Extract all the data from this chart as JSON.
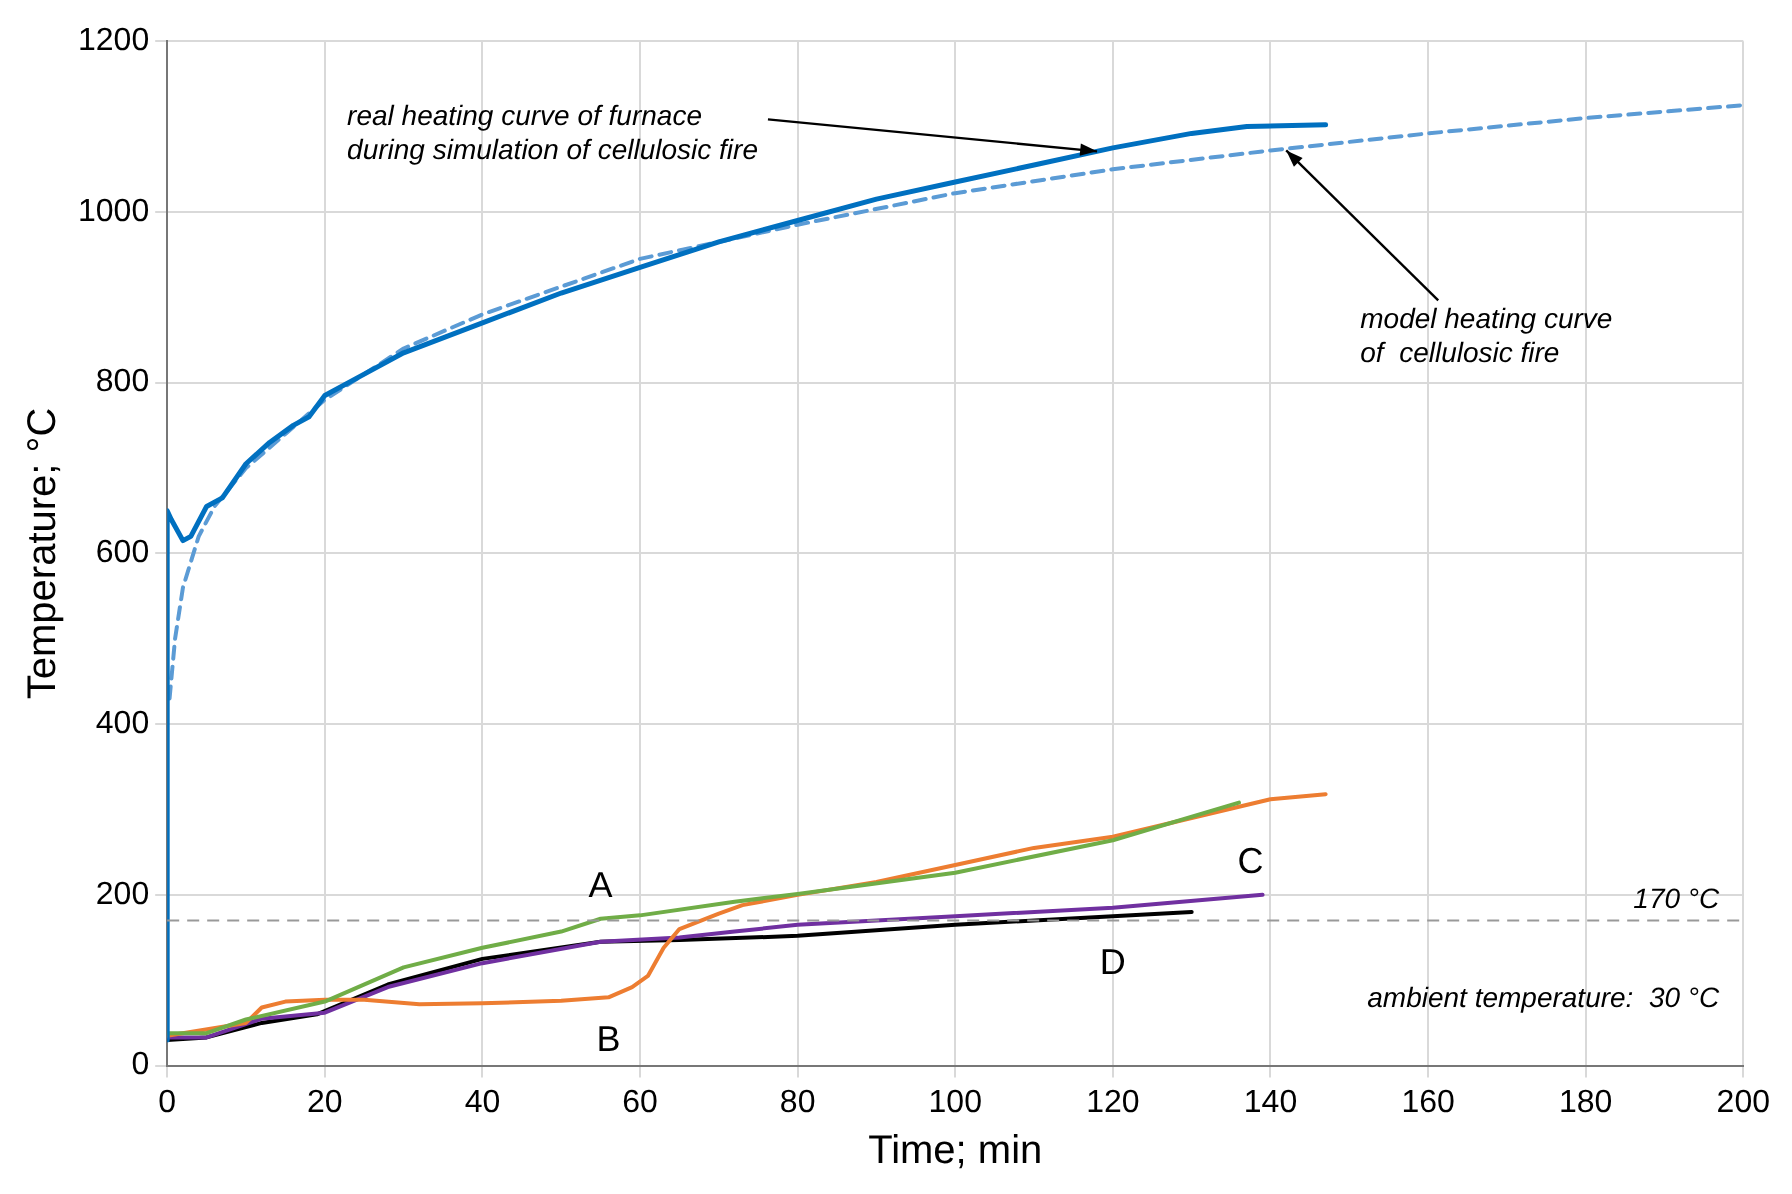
{
  "chart_data": {
    "type": "line",
    "xlabel": "Time; min",
    "ylabel": "Temperature; °C",
    "xlim": [
      0,
      200
    ],
    "xticks": [
      0,
      20,
      40,
      60,
      80,
      100,
      120,
      140,
      160,
      180,
      200
    ],
    "ylim": [
      0,
      1200
    ],
    "yticks": [
      0,
      200,
      400,
      600,
      800,
      1000,
      1200
    ],
    "grid": true,
    "legend": false,
    "marker": "none",
    "series": [
      {
        "color": "#0070c0",
        "line_style": "solid",
        "x": [
          0,
          0,
          0.5,
          2,
          3,
          5,
          7,
          10,
          13,
          16,
          18,
          20,
          25,
          30,
          40,
          50,
          60,
          70,
          80,
          90,
          100,
          110,
          120,
          130,
          137,
          147
        ],
        "values": [
          30,
          650,
          640,
          615,
          620,
          655,
          665,
          705,
          730,
          750,
          760,
          785,
          810,
          835,
          870,
          905,
          935,
          965,
          990,
          1015,
          1035,
          1055,
          1075,
          1092,
          1100,
          1102
        ]
      },
      {
        "color": "#5b9bd5",
        "line_style": "dashed",
        "x": [
          0.3,
          1,
          2,
          4,
          6,
          10,
          15,
          20,
          30,
          40,
          60,
          80,
          100,
          120,
          140,
          160,
          180,
          200
        ],
        "values": [
          430,
          500,
          560,
          620,
          655,
          700,
          740,
          780,
          840,
          880,
          945,
          985,
          1022,
          1050,
          1072,
          1092,
          1110,
          1125
        ]
      },
      {
        "name": "A",
        "color": "#70ad47",
        "line_style": "solid",
        "x": [
          0,
          5,
          10,
          20,
          30,
          40,
          50,
          55,
          60,
          72,
          80,
          100,
          120,
          136
        ],
        "values": [
          38,
          38,
          54,
          75,
          115,
          138,
          157,
          172,
          176,
          192,
          201,
          226,
          264,
          308
        ]
      },
      {
        "name": "B",
        "color": "#ed7d31",
        "line_style": "solid",
        "x": [
          0,
          10,
          12,
          15,
          20,
          25,
          32,
          40,
          50,
          56,
          59,
          61,
          63,
          65,
          70,
          73,
          80,
          90,
          100,
          110,
          120,
          130,
          140,
          147
        ],
        "values": [
          35,
          50,
          68,
          75,
          77,
          77,
          72,
          73,
          76,
          80,
          92,
          105,
          138,
          160,
          178,
          188,
          200,
          215,
          235,
          255,
          268,
          290,
          312,
          318
        ]
      },
      {
        "name": "C",
        "color": "#7030a0",
        "line_style": "solid",
        "x": [
          0,
          5,
          12,
          20,
          28,
          40,
          55,
          65,
          72,
          80,
          100,
          120,
          139
        ],
        "values": [
          33,
          33,
          55,
          62,
          92,
          120,
          145,
          150,
          157,
          165,
          175,
          185,
          200
        ]
      },
      {
        "name": "D",
        "color": "#000000",
        "line_style": "solid",
        "x": [
          0,
          5,
          12,
          19,
          28,
          40,
          55,
          65,
          80,
          100,
          120,
          130
        ],
        "values": [
          30,
          33,
          50,
          60,
          95,
          125,
          145,
          147,
          152,
          165,
          175,
          180
        ]
      }
    ],
    "ref_lines": [
      {
        "axis": "y",
        "value": 170,
        "label": "170 °C",
        "color": "#999999",
        "line_style": "dashed"
      }
    ],
    "annotations": [
      {
        "text": "real heating curve of furnace\nduring simulation of cellulosic fire",
        "x": 118,
        "y": 1071
      },
      {
        "text": "model heating curve\nof  cellulosic fire",
        "x": 142,
        "y": 1072
      },
      "ambient temperature:  30 °C"
    ]
  }
}
